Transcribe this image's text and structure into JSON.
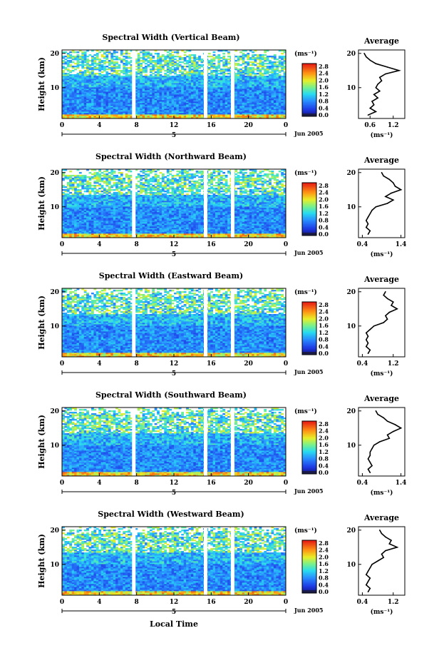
{
  "chart_data": [
    {
      "type": "heatmap",
      "title": "Spectral Width (Vertical Beam)",
      "ylabel": "Height (km)",
      "unit_label": "(ms⁻¹)",
      "date_label": "Jun 2005",
      "xticks": [
        "0",
        "4",
        "8",
        "12",
        "16",
        "20",
        "0"
      ],
      "yticks": [
        "20",
        "10"
      ],
      "colorbar_ticks": [
        "2.8",
        "2.4",
        "2.0",
        "1.6",
        "1.2",
        "0.8",
        "0.4",
        "0.0"
      ],
      "day_marker": "5",
      "gaps_hours": [
        7.7,
        15.4,
        18.3
      ],
      "average": {
        "title": "Average",
        "xticks": [
          "0.6",
          "1.2"
        ],
        "xlim": [
          0.3,
          1.5
        ],
        "xlabel": "(ms⁻¹)",
        "yticks": [
          "20",
          "10"
        ],
        "heights_km": [
          2,
          3,
          4,
          5,
          6,
          7,
          8,
          9,
          10,
          11,
          12,
          13,
          14,
          15,
          16,
          17,
          18,
          19,
          20
        ],
        "values": [
          0.55,
          0.75,
          0.6,
          0.7,
          0.65,
          0.8,
          0.7,
          0.85,
          0.75,
          0.8,
          0.9,
          0.85,
          1.0,
          1.35,
          1.05,
          0.75,
          0.6,
          0.5,
          0.45
        ]
      }
    },
    {
      "type": "heatmap",
      "title": "Spectral Width (Northward Beam)",
      "ylabel": "Height (km)",
      "unit_label": "(ms⁻¹)",
      "date_label": "Jun 2005",
      "xticks": [
        "0",
        "4",
        "8",
        "12",
        "16",
        "20",
        "0"
      ],
      "yticks": [
        "20",
        "10"
      ],
      "colorbar_ticks": [
        "2.8",
        "2.4",
        "2.0",
        "1.6",
        "1.2",
        "0.8",
        "0.4",
        "0.0"
      ],
      "day_marker": "5",
      "gaps_hours": [
        7.7,
        15.4,
        18.3
      ],
      "average": {
        "title": "Average",
        "xticks": [
          "0.4",
          "1.4"
        ],
        "xlim": [
          0.3,
          1.5
        ],
        "xlabel": "(ms⁻¹)",
        "yticks": [
          "20",
          "10"
        ],
        "heights_km": [
          2,
          3,
          4,
          5,
          6,
          7,
          8,
          9,
          10,
          11,
          12,
          13,
          14,
          15,
          16,
          17,
          18,
          19,
          20
        ],
        "values": [
          0.55,
          0.6,
          0.5,
          0.55,
          0.5,
          0.55,
          0.6,
          0.65,
          0.75,
          1.05,
          1.2,
          1.0,
          1.15,
          1.4,
          1.25,
          1.2,
          1.1,
          0.95,
          0.9
        ]
      }
    },
    {
      "type": "heatmap",
      "title": "Spectral Width (Eastward Beam)",
      "ylabel": "Height (km)",
      "unit_label": "(ms⁻¹)",
      "date_label": "Jun 2005",
      "xticks": [
        "0",
        "4",
        "8",
        "12",
        "16",
        "20",
        "0"
      ],
      "yticks": [
        "20",
        "10"
      ],
      "colorbar_ticks": [
        "2.8",
        "2.4",
        "2.0",
        "1.6",
        "1.2",
        "0.8",
        "0.4",
        "0.0"
      ],
      "day_marker": "5",
      "gaps_hours": [
        7.7,
        15.4,
        18.3
      ],
      "average": {
        "title": "Average",
        "xticks": [
          "0.4",
          "1.2"
        ],
        "xlim": [
          0.3,
          1.5
        ],
        "xlabel": "(ms⁻¹)",
        "yticks": [
          "20",
          "10"
        ],
        "heights_km": [
          2,
          3,
          4,
          5,
          6,
          7,
          8,
          9,
          10,
          11,
          12,
          13,
          14,
          15,
          16,
          17,
          18,
          19,
          20
        ],
        "values": [
          0.55,
          0.6,
          0.5,
          0.55,
          0.5,
          0.55,
          0.5,
          0.6,
          0.7,
          0.95,
          1.05,
          1.0,
          1.1,
          1.3,
          1.15,
          1.2,
          1.05,
          0.95,
          1.0
        ]
      }
    },
    {
      "type": "heatmap",
      "title": "Spectral Width (Southward Beam)",
      "ylabel": "Height (km)",
      "unit_label": "(ms⁻¹)",
      "date_label": "Jun 2005",
      "xticks": [
        "0",
        "4",
        "8",
        "12",
        "16",
        "20",
        "0"
      ],
      "yticks": [
        "20",
        "10"
      ],
      "colorbar_ticks": [
        "2.8",
        "2.4",
        "2.0",
        "1.6",
        "1.2",
        "0.8",
        "0.4",
        "0.0"
      ],
      "day_marker": "5",
      "gaps_hours": [
        7.7,
        15.4,
        18.3
      ],
      "average": {
        "title": "Average",
        "xticks": [
          "0.4",
          "1.4"
        ],
        "xlim": [
          0.3,
          1.5
        ],
        "xlabel": "(ms⁻¹)",
        "yticks": [
          "20",
          "10"
        ],
        "heights_km": [
          2,
          3,
          4,
          5,
          6,
          7,
          8,
          9,
          10,
          11,
          12,
          13,
          14,
          15,
          16,
          17,
          18,
          19,
          20
        ],
        "values": [
          0.6,
          0.55,
          0.65,
          0.6,
          0.55,
          0.6,
          0.6,
          0.65,
          0.7,
          0.85,
          1.1,
          1.05,
          1.2,
          1.4,
          1.25,
          1.05,
          0.95,
          0.8,
          0.75
        ]
      }
    },
    {
      "type": "heatmap",
      "title": "Spectral Width (Westward Beam)",
      "ylabel": "Height (km)",
      "unit_label": "(ms⁻¹)",
      "date_label": "Jun 2005",
      "xticks": [
        "0",
        "4",
        "8",
        "12",
        "16",
        "20",
        "0"
      ],
      "yticks": [
        "20",
        "10"
      ],
      "colorbar_ticks": [
        "2.8",
        "2.4",
        "2.0",
        "1.6",
        "1.2",
        "0.8",
        "0.4",
        "0.0"
      ],
      "day_marker": "5",
      "gaps_hours": [
        7.7,
        15.4,
        18.3
      ],
      "average": {
        "title": "Average",
        "xticks": [
          "0.4",
          "1.2"
        ],
        "xlim": [
          0.3,
          1.5
        ],
        "xlabel": "(ms⁻¹)",
        "yticks": [
          "20",
          "10"
        ],
        "heights_km": [
          2,
          3,
          4,
          5,
          6,
          7,
          8,
          9,
          10,
          11,
          12,
          13,
          14,
          15,
          16,
          17,
          18,
          19,
          20
        ],
        "values": [
          0.55,
          0.6,
          0.5,
          0.55,
          0.6,
          0.5,
          0.55,
          0.6,
          0.65,
          0.8,
          0.95,
          0.9,
          1.0,
          1.3,
          1.1,
          1.15,
          1.0,
          0.9,
          0.85
        ]
      }
    }
  ],
  "figure": {
    "xlabel": "Local Time"
  }
}
